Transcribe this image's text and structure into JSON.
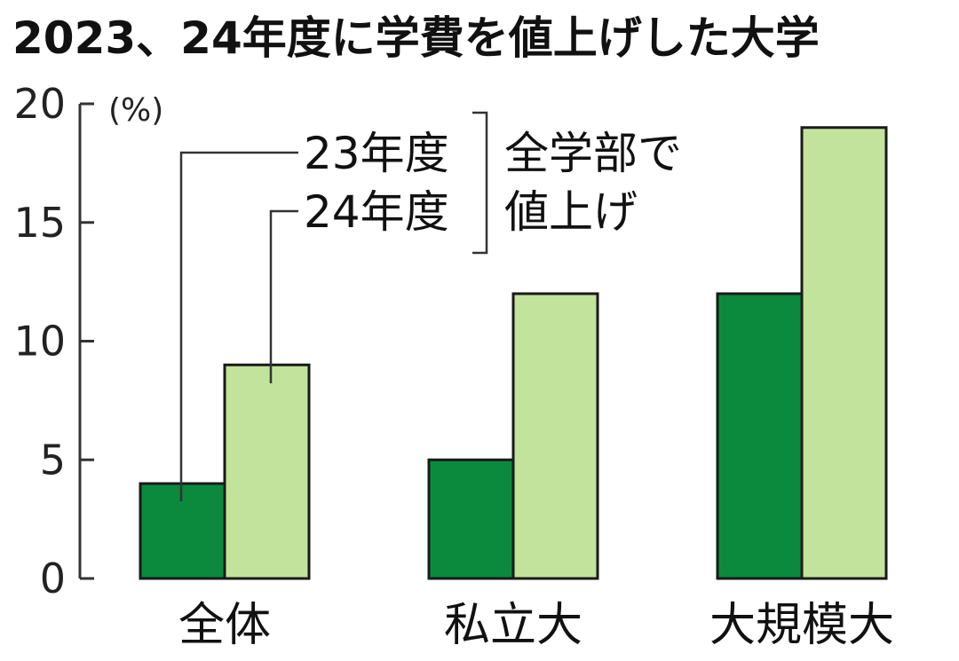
{
  "chart_data": {
    "type": "bar",
    "title": "2023、24年度に学費を値上げした大学",
    "ylabel": "(%)",
    "ylim": [
      0,
      20
    ],
    "yticks": [
      0,
      5,
      10,
      15,
      20
    ],
    "categories": [
      "全体",
      "私立大",
      "大規模大"
    ],
    "series": [
      {
        "name": "23年度",
        "values": [
          4,
          5,
          12
        ]
      },
      {
        "name": "24年度",
        "values": [
          9,
          12,
          19
        ]
      }
    ],
    "legend_note": [
      "全学部で",
      "値上げ"
    ],
    "grid": false,
    "colors": {
      "23年度": "#0b8a3e",
      "24年度": "#c2e39b"
    }
  }
}
